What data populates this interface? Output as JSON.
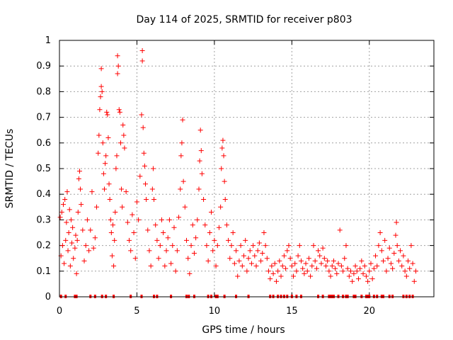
{
  "chart_data": {
    "type": "scatter",
    "title": "Day 114 of 2025, SRMTID for receiver p803",
    "xlabel": "GPS time / hours",
    "ylabel": "SRMTID / TECUs",
    "xlim": [
      0,
      24.167
    ],
    "ylim": [
      0,
      1
    ],
    "xticks": [
      0,
      5,
      10,
      15,
      20
    ],
    "yticks": [
      0,
      0.1,
      0.2,
      0.3,
      0.4,
      0.5,
      0.6,
      0.7,
      0.8,
      0.9,
      1
    ],
    "xtick_labels": [
      "0",
      "5",
      "10",
      "15",
      "20"
    ],
    "ytick_labels": [
      "0",
      "0.1",
      "0.2",
      "0.3",
      "0.4",
      "0.5",
      "0.6",
      "0.7",
      "0.8",
      "0.9",
      "1"
    ],
    "grid": true,
    "marker": "+",
    "color": "#ff0000",
    "series": [
      {
        "name": "SRMTID",
        "points": [
          [
            0.05,
            0.31
          ],
          [
            0.1,
            0.16
          ],
          [
            0.15,
            0.33
          ],
          [
            0.2,
            0.2
          ],
          [
            0.25,
            0.36
          ],
          [
            0.3,
            0.13
          ],
          [
            0.35,
            0.38
          ],
          [
            0.4,
            0.22
          ],
          [
            0.45,
            0.29
          ],
          [
            0.5,
            0.41
          ],
          [
            0.55,
            0.18
          ],
          [
            0.6,
            0.25
          ],
          [
            0.65,
            0.34
          ],
          [
            0.7,
            0.12
          ],
          [
            0.75,
            0.3
          ],
          [
            0.8,
            0.21
          ],
          [
            0.85,
            0.27
          ],
          [
            0.9,
            0.15
          ],
          [
            1.0,
            0.19
          ],
          [
            1.05,
            0.24
          ],
          [
            1.1,
            0.09
          ],
          [
            1.15,
            0.22
          ],
          [
            1.2,
            0.33
          ],
          [
            1.25,
            0.46
          ],
          [
            1.3,
            0.49
          ],
          [
            1.35,
            0.42
          ],
          [
            1.4,
            0.36
          ],
          [
            1.5,
            0.26
          ],
          [
            1.6,
            0.14
          ],
          [
            1.7,
            0.2
          ],
          [
            1.8,
            0.3
          ],
          [
            1.9,
            0.18
          ],
          [
            2.0,
            0.26
          ],
          [
            2.1,
            0.41
          ],
          [
            2.2,
            0.19
          ],
          [
            2.3,
            0.23
          ],
          [
            2.4,
            0.35
          ],
          [
            2.5,
            0.56
          ],
          [
            2.55,
            0.63
          ],
          [
            2.6,
            0.73
          ],
          [
            2.65,
            0.78
          ],
          [
            2.7,
            0.82
          ],
          [
            2.75,
            0.8
          ],
          [
            2.7,
            0.89
          ],
          [
            2.8,
            0.6
          ],
          [
            2.85,
            0.48
          ],
          [
            2.9,
            0.42
          ],
          [
            2.95,
            0.52
          ],
          [
            3.0,
            0.55
          ],
          [
            3.05,
            0.72
          ],
          [
            3.1,
            0.71
          ],
          [
            3.15,
            0.62
          ],
          [
            3.2,
            0.44
          ],
          [
            3.25,
            0.38
          ],
          [
            3.3,
            0.3
          ],
          [
            3.35,
            0.25
          ],
          [
            3.4,
            0.16
          ],
          [
            3.45,
            0.28
          ],
          [
            3.5,
            0.12
          ],
          [
            3.55,
            0.22
          ],
          [
            3.6,
            0.33
          ],
          [
            3.65,
            0.5
          ],
          [
            3.7,
            0.55
          ],
          [
            3.75,
            0.87
          ],
          [
            3.75,
            0.94
          ],
          [
            3.8,
            0.9
          ],
          [
            3.85,
            0.73
          ],
          [
            3.9,
            0.72
          ],
          [
            3.95,
            0.6
          ],
          [
            4.0,
            0.42
          ],
          [
            4.05,
            0.35
          ],
          [
            4.1,
            0.67
          ],
          [
            4.15,
            0.63
          ],
          [
            4.2,
            0.58
          ],
          [
            4.3,
            0.41
          ],
          [
            4.4,
            0.29
          ],
          [
            4.5,
            0.22
          ],
          [
            4.6,
            0.18
          ],
          [
            4.7,
            0.32
          ],
          [
            4.8,
            0.25
          ],
          [
            4.9,
            0.15
          ],
          [
            5.0,
            0.37
          ],
          [
            5.1,
            0.3
          ],
          [
            5.2,
            0.47
          ],
          [
            5.3,
            0.71
          ],
          [
            5.35,
            0.92
          ],
          [
            5.35,
            0.96
          ],
          [
            5.4,
            0.66
          ],
          [
            5.45,
            0.56
          ],
          [
            5.5,
            0.51
          ],
          [
            5.55,
            0.44
          ],
          [
            5.6,
            0.38
          ],
          [
            5.7,
            0.26
          ],
          [
            5.8,
            0.18
          ],
          [
            5.9,
            0.12
          ],
          [
            6.0,
            0.42
          ],
          [
            6.05,
            0.5
          ],
          [
            6.1,
            0.38
          ],
          [
            6.2,
            0.28
          ],
          [
            6.3,
            0.22
          ],
          [
            6.4,
            0.15
          ],
          [
            6.5,
            0.2
          ],
          [
            6.6,
            0.3
          ],
          [
            6.7,
            0.25
          ],
          [
            6.8,
            0.12
          ],
          [
            6.9,
            0.18
          ],
          [
            7.0,
            0.23
          ],
          [
            7.1,
            0.3
          ],
          [
            7.2,
            0.13
          ],
          [
            7.3,
            0.2
          ],
          [
            7.4,
            0.27
          ],
          [
            7.5,
            0.1
          ],
          [
            7.6,
            0.18
          ],
          [
            7.7,
            0.31
          ],
          [
            7.8,
            0.42
          ],
          [
            7.85,
            0.55
          ],
          [
            7.9,
            0.6
          ],
          [
            7.95,
            0.69
          ],
          [
            8.0,
            0.45
          ],
          [
            8.1,
            0.35
          ],
          [
            8.2,
            0.22
          ],
          [
            8.3,
            0.15
          ],
          [
            8.4,
            0.09
          ],
          [
            8.5,
            0.2
          ],
          [
            8.6,
            0.28
          ],
          [
            8.7,
            0.17
          ],
          [
            8.8,
            0.23
          ],
          [
            8.9,
            0.3
          ],
          [
            9.0,
            0.42
          ],
          [
            9.05,
            0.53
          ],
          [
            9.1,
            0.65
          ],
          [
            9.15,
            0.57
          ],
          [
            9.2,
            0.48
          ],
          [
            9.3,
            0.38
          ],
          [
            9.4,
            0.28
          ],
          [
            9.5,
            0.2
          ],
          [
            9.6,
            0.14
          ],
          [
            9.7,
            0.25
          ],
          [
            9.8,
            0.33
          ],
          [
            9.9,
            0.18
          ],
          [
            10.0,
            0.22
          ],
          [
            10.1,
            0.12
          ],
          [
            10.2,
            0.2
          ],
          [
            10.3,
            0.27
          ],
          [
            10.4,
            0.35
          ],
          [
            10.45,
            0.5
          ],
          [
            10.5,
            0.58
          ],
          [
            10.55,
            0.61
          ],
          [
            10.6,
            0.55
          ],
          [
            10.65,
            0.45
          ],
          [
            10.7,
            0.38
          ],
          [
            10.8,
            0.28
          ],
          [
            10.9,
            0.22
          ],
          [
            11.0,
            0.15
          ],
          [
            11.1,
            0.2
          ],
          [
            11.2,
            0.25
          ],
          [
            11.3,
            0.13
          ],
          [
            11.4,
            0.18
          ],
          [
            11.5,
            0.08
          ],
          [
            11.6,
            0.14
          ],
          [
            11.7,
            0.2
          ],
          [
            11.8,
            0.12
          ],
          [
            11.9,
            0.16
          ],
          [
            12.0,
            0.22
          ],
          [
            12.1,
            0.1
          ],
          [
            12.2,
            0.15
          ],
          [
            12.3,
            0.18
          ],
          [
            12.4,
            0.13
          ],
          [
            12.5,
            0.2
          ],
          [
            12.6,
            0.16
          ],
          [
            12.7,
            0.12
          ],
          [
            12.8,
            0.18
          ],
          [
            12.9,
            0.21
          ],
          [
            13.0,
            0.14
          ],
          [
            13.1,
            0.17
          ],
          [
            13.2,
            0.25
          ],
          [
            13.3,
            0.2
          ],
          [
            13.4,
            0.15
          ],
          [
            13.5,
            0.1
          ],
          [
            13.6,
            0.07
          ],
          [
            13.7,
            0.12
          ],
          [
            13.8,
            0.09
          ],
          [
            13.9,
            0.13
          ],
          [
            14.0,
            0.06
          ],
          [
            14.1,
            0.1
          ],
          [
            14.2,
            0.14
          ],
          [
            14.3,
            0.08
          ],
          [
            14.4,
            0.12
          ],
          [
            14.5,
            0.16
          ],
          [
            14.6,
            0.11
          ],
          [
            14.7,
            0.18
          ],
          [
            14.8,
            0.2
          ],
          [
            14.9,
            0.15
          ],
          [
            15.0,
            0.12
          ],
          [
            15.1,
            0.08
          ],
          [
            15.2,
            0.13
          ],
          [
            15.3,
            0.1
          ],
          [
            15.4,
            0.16
          ],
          [
            15.5,
            0.2
          ],
          [
            15.6,
            0.14
          ],
          [
            15.7,
            0.11
          ],
          [
            15.8,
            0.09
          ],
          [
            15.9,
            0.13
          ],
          [
            16.0,
            0.1
          ],
          [
            16.1,
            0.15
          ],
          [
            16.2,
            0.08
          ],
          [
            16.3,
            0.12
          ],
          [
            16.4,
            0.2
          ],
          [
            16.5,
            0.14
          ],
          [
            16.6,
            0.11
          ],
          [
            16.7,
            0.18
          ],
          [
            16.8,
            0.16
          ],
          [
            16.9,
            0.13
          ],
          [
            17.0,
            0.19
          ],
          [
            17.1,
            0.15
          ],
          [
            17.2,
            0.12
          ],
          [
            17.3,
            0.14
          ],
          [
            17.4,
            0.1
          ],
          [
            17.5,
            0.08
          ],
          [
            17.6,
            0.12
          ],
          [
            17.7,
            0.14
          ],
          [
            17.8,
            0.11
          ],
          [
            17.9,
            0.09
          ],
          [
            18.0,
            0.13
          ],
          [
            18.1,
            0.26
          ],
          [
            18.2,
            0.12
          ],
          [
            18.3,
            0.1
          ],
          [
            18.4,
            0.15
          ],
          [
            18.5,
            0.2
          ],
          [
            18.6,
            0.11
          ],
          [
            18.7,
            0.08
          ],
          [
            18.8,
            0.1
          ],
          [
            18.9,
            0.06
          ],
          [
            19.0,
            0.09
          ],
          [
            19.1,
            0.12
          ],
          [
            19.2,
            0.1
          ],
          [
            19.3,
            0.07
          ],
          [
            19.4,
            0.11
          ],
          [
            19.5,
            0.14
          ],
          [
            19.6,
            0.09
          ],
          [
            19.7,
            0.12
          ],
          [
            19.8,
            0.08
          ],
          [
            19.9,
            0.06
          ],
          [
            20.0,
            0.1
          ],
          [
            20.1,
            0.13
          ],
          [
            20.2,
            0.07
          ],
          [
            20.3,
            0.11
          ],
          [
            20.4,
            0.16
          ],
          [
            20.5,
            0.12
          ],
          [
            20.6,
            0.2
          ],
          [
            20.7,
            0.25
          ],
          [
            20.8,
            0.18
          ],
          [
            20.9,
            0.14
          ],
          [
            21.0,
            0.22
          ],
          [
            21.1,
            0.1
          ],
          [
            21.2,
            0.15
          ],
          [
            21.3,
            0.19
          ],
          [
            21.4,
            0.13
          ],
          [
            21.5,
            0.11
          ],
          [
            21.6,
            0.17
          ],
          [
            21.7,
            0.24
          ],
          [
            21.75,
            0.29
          ],
          [
            21.8,
            0.2
          ],
          [
            21.9,
            0.14
          ],
          [
            22.0,
            0.18
          ],
          [
            22.1,
            0.12
          ],
          [
            22.2,
            0.16
          ],
          [
            22.3,
            0.1
          ],
          [
            22.4,
            0.08
          ],
          [
            22.5,
            0.14
          ],
          [
            22.6,
            0.11
          ],
          [
            22.7,
            0.2
          ],
          [
            22.8,
            0.13
          ],
          [
            22.9,
            0.06
          ],
          [
            23.0,
            0.1
          ]
        ],
        "zero_points_x": [
          0.1,
          0.4,
          1.0,
          1.1,
          2.0,
          2.3,
          2.75,
          3.0,
          3.5,
          4.6,
          5.3,
          6.1,
          6.3,
          7.2,
          8.2,
          8.35,
          8.7,
          9.6,
          9.8,
          10.1,
          10.2,
          10.65,
          11.4,
          12.2,
          13.6,
          13.8,
          14.1,
          14.3,
          14.5,
          14.7,
          15.0,
          15.3,
          15.6,
          16.7,
          17.0,
          17.4,
          17.5,
          17.6,
          17.7,
          18.0,
          18.3,
          18.5,
          18.6,
          19.0,
          19.1,
          19.5,
          19.8,
          19.9,
          20.0,
          20.3,
          20.5,
          20.8,
          20.9,
          21.3,
          21.5,
          22.2,
          22.4,
          22.6,
          22.8
        ]
      }
    ]
  }
}
